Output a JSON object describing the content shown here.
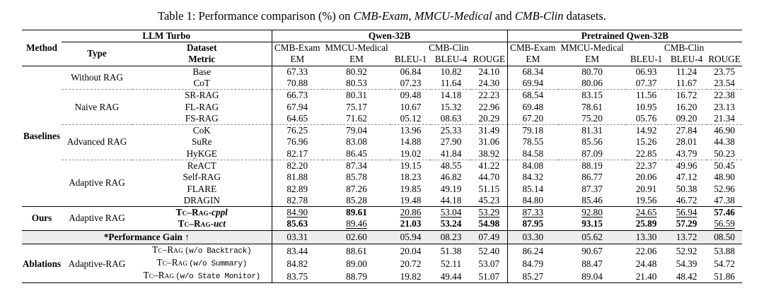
{
  "caption": {
    "parts": [
      {
        "text": "Table 1: Performance comparison (%) on ",
        "italic": false
      },
      {
        "text": "CMB-Exam",
        "italic": true
      },
      {
        "text": ", ",
        "italic": false
      },
      {
        "text": "MMCU-Medical",
        "italic": true
      },
      {
        "text": " and ",
        "italic": false
      },
      {
        "text": "CMB-Clin",
        "italic": true
      },
      {
        "text": " datasets.",
        "italic": false
      }
    ]
  },
  "header": {
    "method": "Method",
    "llm_turbo": "LLM Turbo",
    "type": "Type",
    "dataset": "Dataset",
    "metric": "Metric",
    "groups": [
      {
        "name": "Qwen-32B",
        "datasets": [
          {
            "label": "CMB-Exam",
            "span": 1
          },
          {
            "label": "MMCU-Medical",
            "span": 1
          },
          {
            "label": "CMB-Clin",
            "span": 3
          }
        ],
        "metrics": [
          "EM",
          "EM",
          "BLEU-1",
          "BLEU-4",
          "ROUGE"
        ]
      },
      {
        "name": "Pretrained Qwen-32B",
        "datasets": [
          {
            "label": "CMB-Exam",
            "span": 1
          },
          {
            "label": "MMCU-Medical",
            "span": 1
          },
          {
            "label": "CMB-Clin",
            "span": 3
          }
        ],
        "metrics": [
          "EM",
          "EM",
          "BLEU-1",
          "BLEU-4",
          "ROUGE"
        ]
      }
    ]
  },
  "sections": [
    {
      "method": "Baselines",
      "groups": [
        {
          "type": "Without RAG",
          "rows": [
            {
              "name": "Base",
              "values": [
                "67.33",
                "80.92",
                "06.84",
                "10.82",
                "24.10",
                "68.34",
                "80.70",
                "06.93",
                "11.24",
                "23.75"
              ]
            },
            {
              "name": "CoT",
              "values": [
                "70.88",
                "80.53",
                "07.23",
                "11.64",
                "24.30",
                "69.94",
                "80.06",
                "07.37",
                "11.67",
                "23.54"
              ]
            }
          ]
        },
        {
          "type": "Naive RAG",
          "rows": [
            {
              "name": "SR-RAG",
              "values": [
                "66.73",
                "80.31",
                "09.48",
                "14.18",
                "22.23",
                "68.54",
                "83.15",
                "11.56",
                "16.72",
                "22.38"
              ]
            },
            {
              "name": "FL-RAG",
              "values": [
                "67.94",
                "75.17",
                "10.67",
                "15.32",
                "22.96",
                "69.48",
                "78.61",
                "10.95",
                "16.20",
                "23.13"
              ]
            },
            {
              "name": "FS-RAG",
              "values": [
                "64.65",
                "71.62",
                "05.12",
                "08.63",
                "20.29",
                "67.20",
                "75.20",
                "05.76",
                "09.20",
                "21.34"
              ]
            }
          ]
        },
        {
          "type": "Advanced RAG",
          "rows": [
            {
              "name": "CoK",
              "values": [
                "76.25",
                "79.04",
                "13.96",
                "25.33",
                "31.49",
                "79.18",
                "81.31",
                "14.92",
                "27.84",
                "46.90"
              ]
            },
            {
              "name": "SuRe",
              "values": [
                "76.96",
                "83.08",
                "14.88",
                "27.90",
                "31.06",
                "78.55",
                "85.56",
                "15.26",
                "28.01",
                "44.38"
              ]
            },
            {
              "name": "HyKGE",
              "values": [
                "82.17",
                "86.45",
                "19.02",
                "41.84",
                "38.92",
                "84.58",
                "87.09",
                "22.85",
                "43.79",
                "50.23"
              ]
            }
          ]
        },
        {
          "type": "Adaptive RAG",
          "rows": [
            {
              "name": "ReACT",
              "values": [
                "82.20",
                "87.34",
                "19.15",
                "48.55",
                "41.22",
                "84.08",
                "88.19",
                "22.37",
                "49.96",
                "50.45"
              ]
            },
            {
              "name": "Self-RAG",
              "values": [
                "81.88",
                "85.78",
                "18.23",
                "46.82",
                "44.70",
                "84.32",
                "86.77",
                "20.06",
                "47.12",
                "48.90"
              ]
            },
            {
              "name": "FLARE",
              "values": [
                "82.89",
                "87.26",
                "19.85",
                "49.19",
                "51.15",
                "85.14",
                "87.37",
                "20.91",
                "50.38",
                "52.96"
              ]
            },
            {
              "name": "DRAGIN",
              "values": [
                "82.78",
                "85.28",
                "19.48",
                "44.18",
                "45.23",
                "84.80",
                "85.46",
                "19.56",
                "46.72",
                "47.38"
              ]
            }
          ]
        }
      ]
    },
    {
      "method": "Ours",
      "groups": [
        {
          "type": "Adaptive RAG",
          "rows": [
            {
              "sc": "Tc–Rag",
              "suffix": "-cppl",
              "suffix_style": "italic",
              "bold_name": true,
              "values": [
                "84.90",
                "89.61",
                "20.86",
                "53.04",
                "53.29",
                "87.33",
                "92.80",
                "24.65",
                "56.94",
                "57.46"
              ],
              "value_styles": [
                "u",
                "b",
                "u",
                "u",
                "u",
                "u",
                "u",
                "u",
                "u",
                "b"
              ]
            },
            {
              "sc": "Tc–Rag",
              "suffix": "-uct",
              "suffix_style": "italic",
              "bold_name": true,
              "values": [
                "85.63",
                "89.46",
                "21.03",
                "53.24",
                "54.98",
                "87.95",
                "93.15",
                "25.89",
                "57.29",
                "56.59"
              ],
              "value_styles": [
                "b",
                "u",
                "b",
                "b",
                "b",
                "b",
                "b",
                "b",
                "b",
                "u"
              ]
            }
          ]
        }
      ]
    },
    {
      "method": "Ablations",
      "groups": [
        {
          "type": "Adaptive-RAG",
          "rows": [
            {
              "sc": "Tc–Rag",
              "suffix": "(w/o Backtrack)",
              "suffix_style": "mono",
              "values": [
                "83.44",
                "88.61",
                "20.04",
                "51.38",
                "52.40",
                "86.24",
                "90.67",
                "22.06",
                "52.92",
                "53.88"
              ]
            },
            {
              "sc": "Tc–Rag",
              "suffix": "(w/o Summary)",
              "suffix_style": "mono",
              "values": [
                "84.82",
                "89.00",
                "20.72",
                "52.11",
                "53.07",
                "84.79",
                "88.47",
                "24.48",
                "54.39",
                "54.72"
              ]
            },
            {
              "sc": "Tc–Rag",
              "suffix": "(w/o State Monitor)",
              "suffix_style": "mono",
              "values": [
                "83.75",
                "88.79",
                "19.82",
                "49.44",
                "51.07",
                "85.27",
                "89.04",
                "21.40",
                "48.42",
                "51.86"
              ]
            }
          ]
        }
      ]
    }
  ],
  "gain_row": {
    "label": "*Performance Gain ↑",
    "values": [
      "03.31",
      "02.60",
      "05.94",
      "08.23",
      "07.49",
      "03.30",
      "05.62",
      "13.30",
      "13.72",
      "08.50"
    ]
  },
  "colors": {
    "gain_row_bg": "#ededed",
    "rule": "#000000",
    "dashed_rule": "#8f8f8f"
  }
}
